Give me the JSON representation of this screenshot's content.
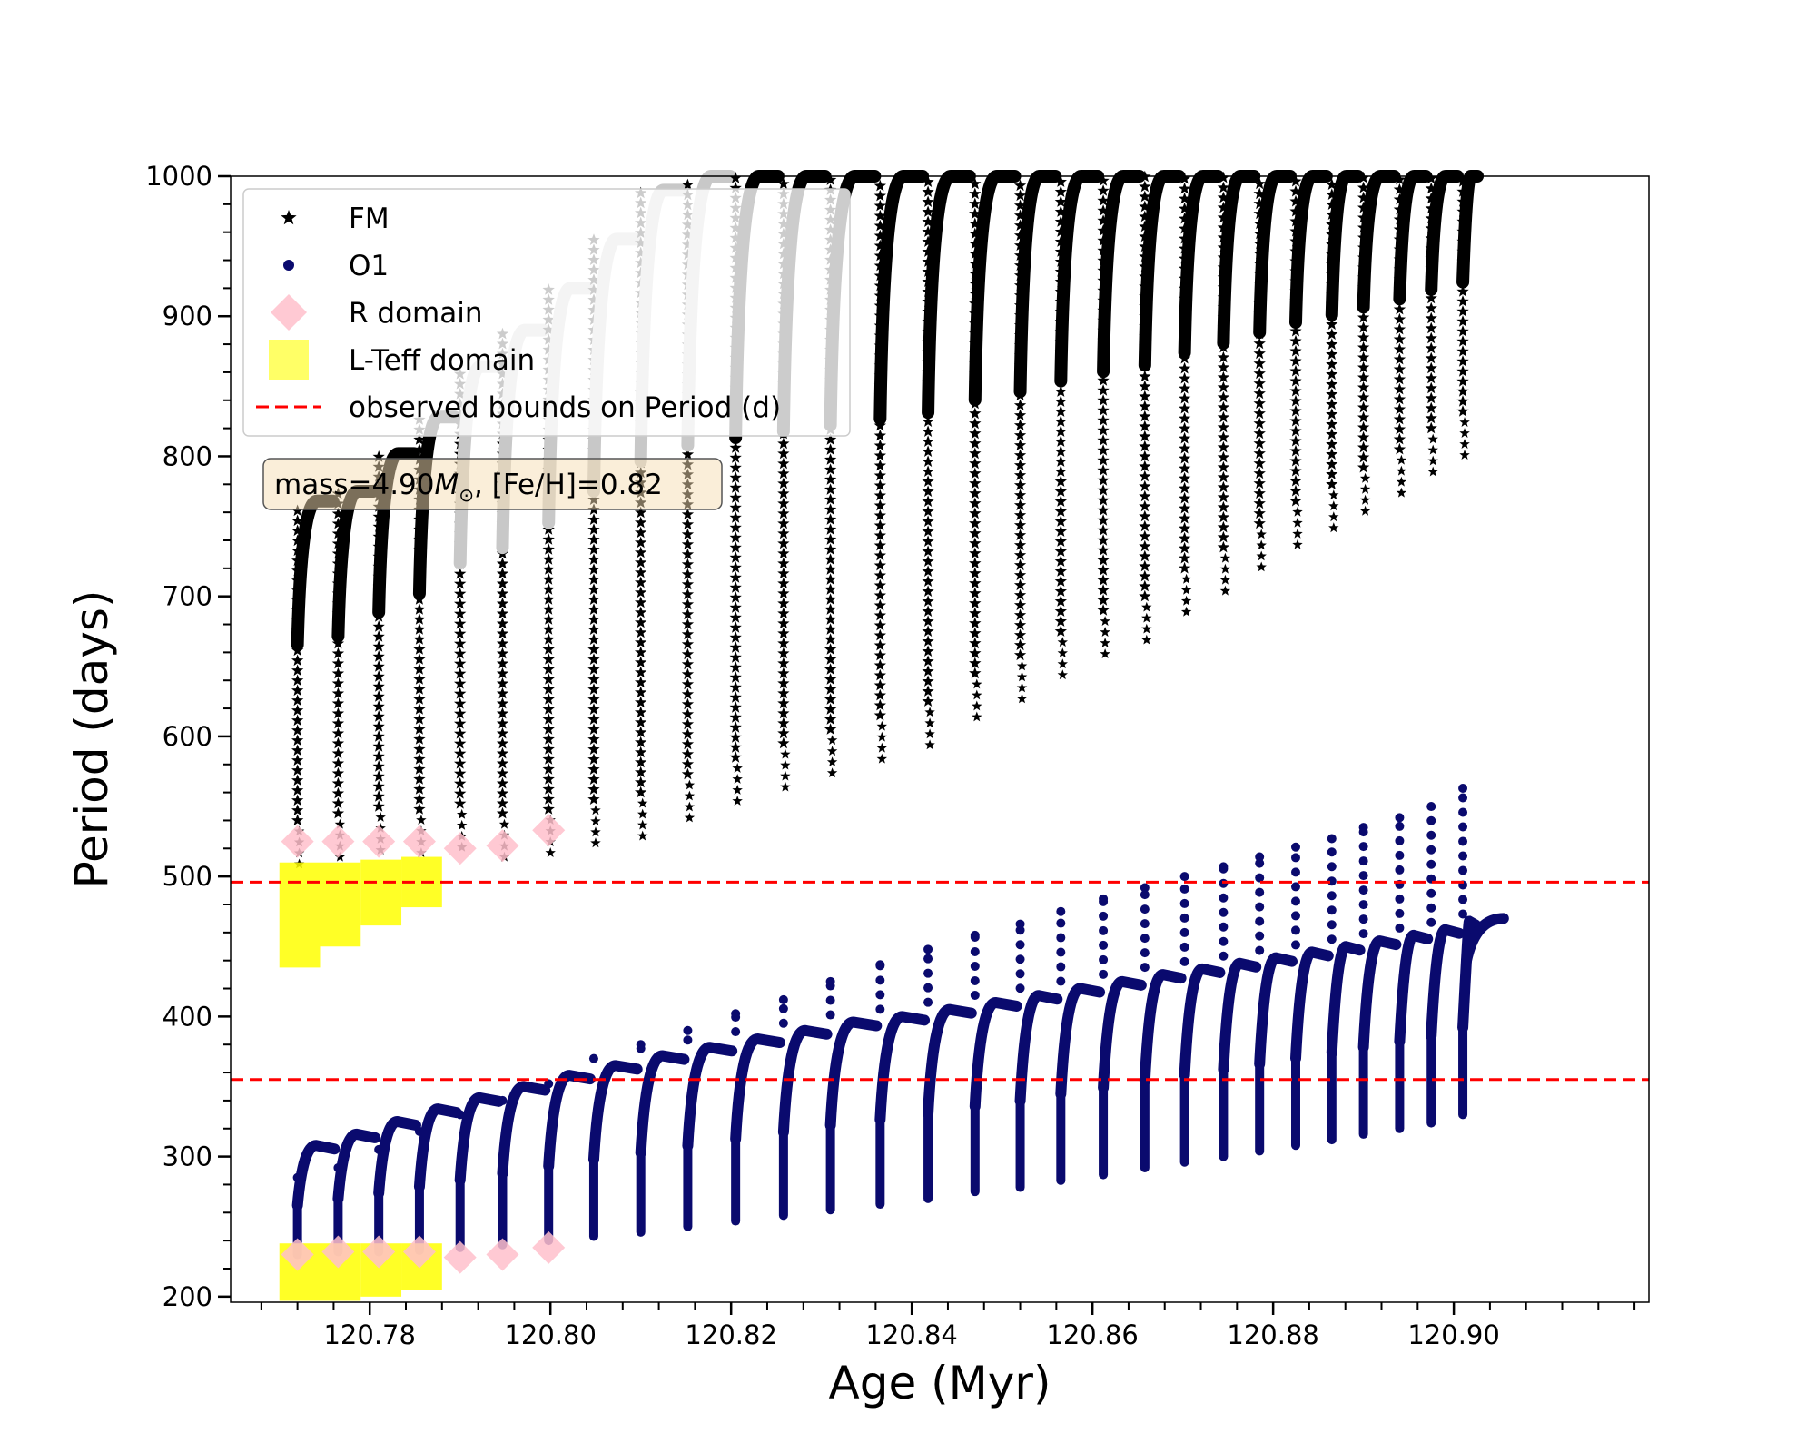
{
  "chart_data": {
    "type": "scatter",
    "xlabel": "Age (Myr)",
    "ylabel": "Period (days)",
    "xlim": [
      120.7646,
      120.9216
    ],
    "ylim": [
      196,
      1000
    ],
    "xticks": [
      "120.78",
      "120.80",
      "120.82",
      "120.84",
      "120.86",
      "120.88",
      "120.90"
    ],
    "xtick_values": [
      120.78,
      120.8,
      120.82,
      120.84,
      120.86,
      120.88,
      120.9
    ],
    "yticks": [
      "200",
      "300",
      "400",
      "500",
      "600",
      "700",
      "800",
      "900",
      "1000"
    ],
    "ytick_values": [
      200,
      300,
      400,
      500,
      600,
      700,
      800,
      900,
      1000
    ],
    "x_minor_step": 0.004,
    "y_minor_step": 20,
    "grid": false,
    "legend_position": "top-left",
    "annotation": {
      "text_prefix": "mass=4.90",
      "m_symbol": "M",
      "sub_symbol": "⊙",
      "text_suffix": ", [Fe/H]=0.82"
    },
    "hlines": [
      496,
      355
    ],
    "series": [
      {
        "name": "FM",
        "marker": "star",
        "color": "#000000",
        "faded_color": "#c8c8c8",
        "pulses": [
          {
            "x": 120.772,
            "min": 540,
            "max": 768
          },
          {
            "x": 120.7765,
            "min": 545,
            "max": 775
          },
          {
            "x": 120.781,
            "min": 550,
            "max": 802
          },
          {
            "x": 120.7855,
            "min": 548,
            "max": 828
          },
          {
            "x": 120.79,
            "min": 552,
            "max": 864
          },
          {
            "x": 120.7947,
            "min": 545,
            "max": 890
          },
          {
            "x": 120.7998,
            "min": 548,
            "max": 920
          },
          {
            "x": 120.8048,
            "min": 555,
            "max": 955
          },
          {
            "x": 120.81,
            "min": 560,
            "max": 990
          },
          {
            "x": 120.8152,
            "min": 573,
            "max": 1000
          },
          {
            "x": 120.8205,
            "min": 585,
            "max": 1000
          },
          {
            "x": 120.8258,
            "min": 595,
            "max": 1000
          },
          {
            "x": 120.831,
            "min": 605,
            "max": 1000
          },
          {
            "x": 120.8365,
            "min": 615,
            "max": 1000
          },
          {
            "x": 120.8418,
            "min": 625,
            "max": 1000
          },
          {
            "x": 120.847,
            "min": 645,
            "max": 1000
          },
          {
            "x": 120.852,
            "min": 658,
            "max": 1000
          },
          {
            "x": 120.8565,
            "min": 675,
            "max": 1000
          },
          {
            "x": 120.8612,
            "min": 690,
            "max": 1000
          },
          {
            "x": 120.8658,
            "min": 700,
            "max": 1000
          },
          {
            "x": 120.8702,
            "min": 720,
            "max": 1000
          },
          {
            "x": 120.8745,
            "min": 735,
            "max": 1000
          },
          {
            "x": 120.8785,
            "min": 752,
            "max": 1000
          },
          {
            "x": 120.8825,
            "min": 768,
            "max": 1000
          },
          {
            "x": 120.8865,
            "min": 780,
            "max": 1000
          },
          {
            "x": 120.89,
            "min": 792,
            "max": 1000
          },
          {
            "x": 120.894,
            "min": 805,
            "max": 1000
          },
          {
            "x": 120.8975,
            "min": 820,
            "max": 1000
          },
          {
            "x": 120.901,
            "min": 832,
            "max": 1000
          }
        ]
      },
      {
        "name": "O1",
        "marker": "circle",
        "color": "#0a0a6e",
        "pulses": [
          {
            "x": 120.772,
            "min": 230,
            "max": 308,
            "spike": 285
          },
          {
            "x": 120.7765,
            "min": 232,
            "max": 316,
            "spike": 292
          },
          {
            "x": 120.781,
            "min": 232,
            "max": 325,
            "spike": 305
          },
          {
            "x": 120.7855,
            "min": 233,
            "max": 334,
            "spike": 318
          },
          {
            "x": 120.79,
            "min": 235,
            "max": 342,
            "spike": 330
          },
          {
            "x": 120.7947,
            "min": 237,
            "max": 350,
            "spike": 340
          },
          {
            "x": 120.7998,
            "min": 240,
            "max": 358,
            "spike": 352
          },
          {
            "x": 120.8048,
            "min": 243,
            "max": 365,
            "spike": 370
          },
          {
            "x": 120.81,
            "min": 246,
            "max": 372,
            "spike": 380
          },
          {
            "x": 120.8152,
            "min": 250,
            "max": 378,
            "spike": 390
          },
          {
            "x": 120.8205,
            "min": 254,
            "max": 384,
            "spike": 402
          },
          {
            "x": 120.8258,
            "min": 258,
            "max": 390,
            "spike": 412
          },
          {
            "x": 120.831,
            "min": 262,
            "max": 396,
            "spike": 425
          },
          {
            "x": 120.8365,
            "min": 266,
            "max": 400,
            "spike": 437
          },
          {
            "x": 120.8418,
            "min": 270,
            "max": 405,
            "spike": 448
          },
          {
            "x": 120.847,
            "min": 275,
            "max": 410,
            "spike": 458
          },
          {
            "x": 120.852,
            "min": 278,
            "max": 415,
            "spike": 466
          },
          {
            "x": 120.8565,
            "min": 283,
            "max": 420,
            "spike": 475
          },
          {
            "x": 120.8612,
            "min": 287,
            "max": 425,
            "spike": 484
          },
          {
            "x": 120.8658,
            "min": 292,
            "max": 430,
            "spike": 492
          },
          {
            "x": 120.8702,
            "min": 296,
            "max": 434,
            "spike": 500
          },
          {
            "x": 120.8745,
            "min": 300,
            "max": 438,
            "spike": 507
          },
          {
            "x": 120.8785,
            "min": 304,
            "max": 442,
            "spike": 514
          },
          {
            "x": 120.8825,
            "min": 308,
            "max": 446,
            "spike": 521
          },
          {
            "x": 120.8865,
            "min": 312,
            "max": 450,
            "spike": 527
          },
          {
            "x": 120.89,
            "min": 316,
            "max": 454,
            "spike": 535
          },
          {
            "x": 120.894,
            "min": 320,
            "max": 458,
            "spike": 542
          },
          {
            "x": 120.8975,
            "min": 324,
            "max": 462,
            "spike": 550
          },
          {
            "x": 120.901,
            "min": 330,
            "max": 468,
            "spike": 563
          }
        ],
        "tail": {
          "x_start": 120.901,
          "x_end": 120.9055,
          "y_start": 440,
          "y_end": 470
        }
      },
      {
        "name": "R domain",
        "marker": "diamond",
        "color": "#ffc0cb",
        "points": [
          [
            120.772,
            525
          ],
          [
            120.7765,
            525
          ],
          [
            120.781,
            525
          ],
          [
            120.7855,
            525
          ],
          [
            120.79,
            520
          ],
          [
            120.7947,
            522
          ],
          [
            120.7998,
            533
          ],
          [
            120.772,
            230
          ],
          [
            120.7765,
            232
          ],
          [
            120.781,
            232
          ],
          [
            120.7855,
            232
          ],
          [
            120.79,
            228
          ],
          [
            120.7947,
            230
          ],
          [
            120.7998,
            235
          ]
        ]
      },
      {
        "name": "L-Teff domain",
        "marker": "square",
        "color": "#ffff00",
        "blocks": [
          {
            "x0": 120.77,
            "x1": 120.7745,
            "y0": 435,
            "y1": 510
          },
          {
            "x0": 120.7745,
            "x1": 120.779,
            "y0": 450,
            "y1": 510
          },
          {
            "x0": 120.779,
            "x1": 120.7835,
            "y0": 465,
            "y1": 512
          },
          {
            "x0": 120.7835,
            "x1": 120.788,
            "y0": 478,
            "y1": 514
          },
          {
            "x0": 120.77,
            "x1": 120.7745,
            "y0": 197,
            "y1": 238
          },
          {
            "x0": 120.7745,
            "x1": 120.779,
            "y0": 197,
            "y1": 238
          },
          {
            "x0": 120.779,
            "x1": 120.7835,
            "y0": 200,
            "y1": 238
          },
          {
            "x0": 120.7835,
            "x1": 120.788,
            "y0": 205,
            "y1": 238
          }
        ]
      },
      {
        "name": "observed bounds on Period (d)",
        "marker": "dashed-line",
        "color": "#ff0000"
      }
    ]
  }
}
